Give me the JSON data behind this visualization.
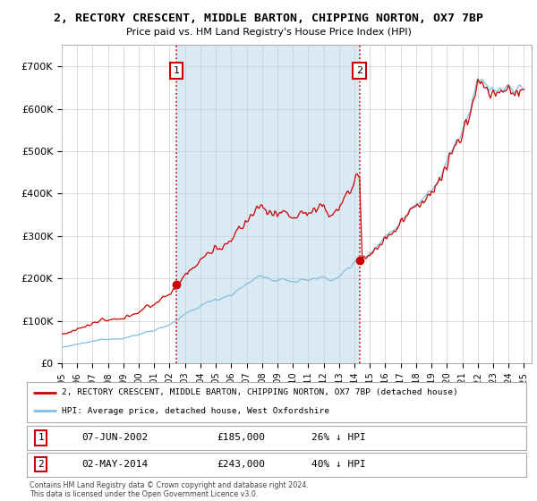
{
  "title": "2, RECTORY CRESCENT, MIDDLE BARTON, CHIPPING NORTON, OX7 7BP",
  "subtitle": "Price paid vs. HM Land Registry's House Price Index (HPI)",
  "ylim": [
    0,
    750000
  ],
  "yticks": [
    0,
    100000,
    200000,
    300000,
    400000,
    500000,
    600000,
    700000
  ],
  "ytick_labels": [
    "£0",
    "£100K",
    "£200K",
    "£300K",
    "£400K",
    "£500K",
    "£600K",
    "£700K"
  ],
  "hpi_color": "#7fbfdf",
  "price_color": "#cc0000",
  "shade_color": "#daeaf5",
  "marker1_x": 2002.44,
  "marker1_y_dot": 185000,
  "marker2_x": 2014.34,
  "marker2_y_dot": 243000,
  "marker2_y_hpi": 405000,
  "legend_line1": "2, RECTORY CRESCENT, MIDDLE BARTON, CHIPPING NORTON, OX7 7BP (detached house)",
  "legend_line2": "HPI: Average price, detached house, West Oxfordshire",
  "table_row1_num": "1",
  "table_row1_date": "07-JUN-2002",
  "table_row1_price": "£185,000",
  "table_row1_hpi": "26% ↓ HPI",
  "table_row2_num": "2",
  "table_row2_date": "02-MAY-2014",
  "table_row2_price": "£243,000",
  "table_row2_hpi": "40% ↓ HPI",
  "footer": "Contains HM Land Registry data © Crown copyright and database right 2024.\nThis data is licensed under the Open Government Licence v3.0.",
  "background_color": "#ffffff",
  "grid_color": "#cccccc",
  "xlim_start": 1995.0,
  "xlim_end": 2025.5
}
